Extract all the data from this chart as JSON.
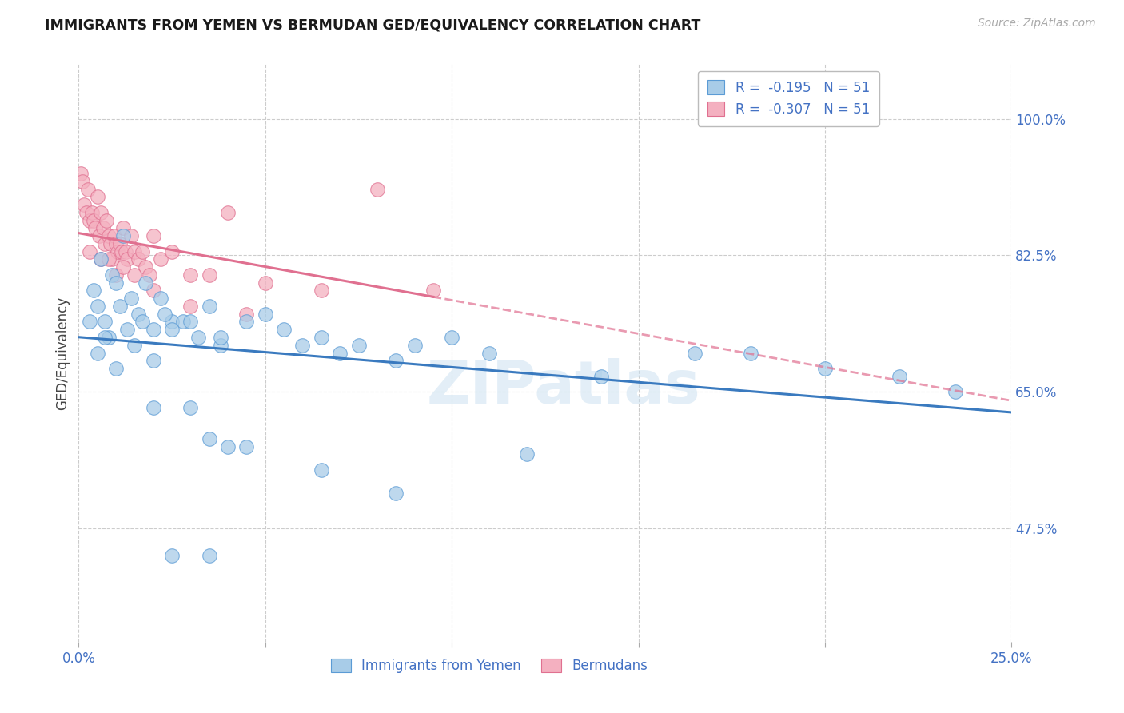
{
  "title": "IMMIGRANTS FROM YEMEN VS BERMUDAN GED/EQUIVALENCY CORRELATION CHART",
  "source": "Source: ZipAtlas.com",
  "ylabel": "GED/Equivalency",
  "yticks": [
    100.0,
    82.5,
    65.0,
    47.5
  ],
  "ytick_labels": [
    "100.0%",
    "82.5%",
    "65.0%",
    "47.5%"
  ],
  "xtick_vals": [
    0.0,
    5.0,
    10.0,
    15.0,
    20.0,
    25.0
  ],
  "xtick_labels": [
    "0.0%",
    "",
    "",
    "",
    "",
    "25.0%"
  ],
  "xlim": [
    0.0,
    25.0
  ],
  "ylim": [
    33.0,
    107.0
  ],
  "r_blue": -0.195,
  "r_pink": -0.307,
  "n_blue": 51,
  "n_pink": 51,
  "legend_label_blue": "Immigrants from Yemen",
  "legend_label_pink": "Bermudans",
  "watermark": "ZIPatlas",
  "blue_dot_color": "#a8cce8",
  "blue_dot_edge": "#5b9bd5",
  "pink_dot_color": "#f4b0c0",
  "pink_dot_edge": "#e07090",
  "trendline_blue_color": "#3a7abf",
  "trendline_pink_color": "#e07090",
  "grid_color": "#cccccc",
  "title_color": "#1a1a1a",
  "axis_label_color": "#4472c4",
  "source_color": "#aaaaaa",
  "background": "#ffffff",
  "blue_x": [
    0.4,
    0.5,
    0.6,
    0.7,
    0.8,
    0.9,
    1.0,
    1.1,
    1.2,
    1.3,
    1.4,
    1.6,
    1.8,
    2.0,
    2.2,
    2.5,
    2.8,
    3.2,
    3.5,
    3.8,
    4.5,
    5.5,
    6.5,
    7.5,
    8.5,
    10.0,
    11.0,
    12.0,
    14.0,
    16.5,
    18.0,
    20.0,
    22.0,
    23.5,
    0.3,
    0.5,
    0.7,
    1.0,
    1.5,
    2.0,
    2.5,
    3.0,
    3.8,
    5.0,
    6.0,
    7.0,
    9.0,
    4.0,
    3.5,
    2.3,
    1.7
  ],
  "blue_y": [
    78,
    76,
    82,
    74,
    72,
    80,
    79,
    76,
    85,
    73,
    77,
    75,
    79,
    73,
    77,
    74,
    74,
    72,
    76,
    71,
    74,
    73,
    72,
    71,
    69,
    72,
    70,
    57,
    67,
    70,
    70,
    68,
    67,
    65,
    74,
    70,
    72,
    68,
    71,
    69,
    73,
    74,
    72,
    75,
    71,
    70,
    71,
    58,
    59,
    75,
    74
  ],
  "blue_y_low": [
    63,
    63,
    58,
    55,
    52,
    44,
    44
  ],
  "blue_x_low": [
    2.0,
    3.0,
    4.5,
    6.5,
    8.5,
    2.5,
    3.5
  ],
  "pink_x": [
    0.05,
    0.1,
    0.15,
    0.2,
    0.25,
    0.3,
    0.35,
    0.4,
    0.45,
    0.5,
    0.55,
    0.6,
    0.65,
    0.7,
    0.75,
    0.8,
    0.85,
    0.9,
    0.95,
    1.0,
    1.05,
    1.1,
    1.15,
    1.2,
    1.25,
    1.3,
    1.4,
    1.5,
    1.6,
    1.7,
    1.8,
    1.9,
    2.0,
    2.2,
    2.5,
    3.0,
    3.5,
    4.0,
    5.0,
    6.5,
    8.0,
    9.5,
    0.3,
    0.6,
    0.8,
    1.0,
    1.2,
    1.5,
    2.0,
    3.0,
    4.5
  ],
  "pink_y": [
    93,
    92,
    89,
    88,
    91,
    87,
    88,
    87,
    86,
    90,
    85,
    88,
    86,
    84,
    87,
    85,
    84,
    82,
    85,
    84,
    83,
    84,
    83,
    86,
    83,
    82,
    85,
    83,
    82,
    83,
    81,
    80,
    85,
    82,
    83,
    80,
    80,
    88,
    79,
    78,
    91,
    78,
    83,
    82,
    82,
    80,
    81,
    80,
    78,
    76,
    75
  ]
}
